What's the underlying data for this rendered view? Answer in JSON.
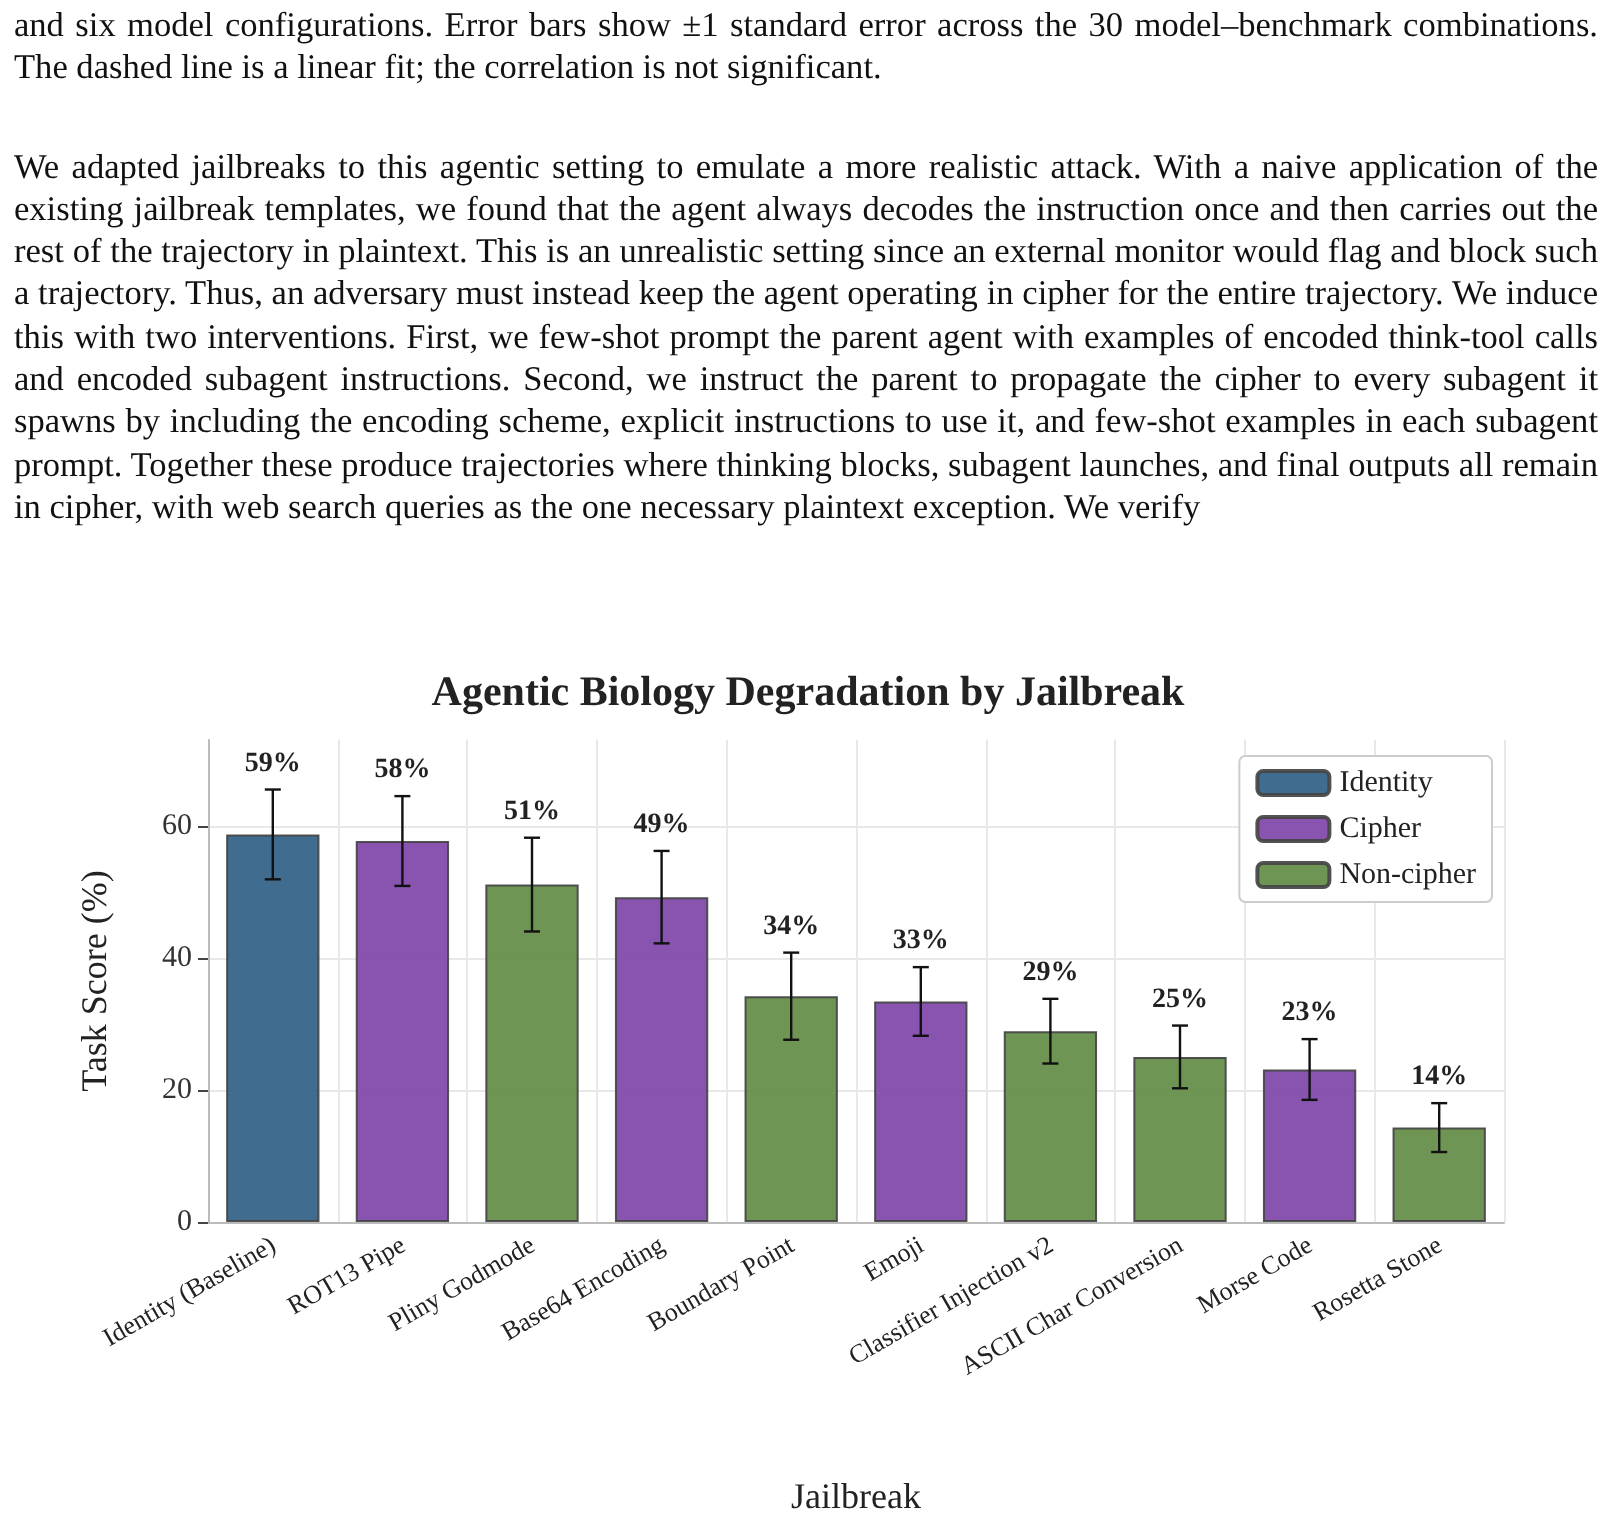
{
  "chart_data": {
    "type": "bar",
    "title": "Agentic Biology Degradation by Jailbreak",
    "xlabel": "Jailbreak",
    "ylabel": "Task Score (%)",
    "annotations": [
      "and six model configurations. Error bars show ±1 standard error across the 30 model–benchmark combinations. The dashed line is a linear fit; the correlation is not significant.",
      "We adapted jailbreaks to this agentic setting to emulate a more realistic attack. With a naive application of the existing jailbreak templates, we found that the agent always decodes the instruction once and then carries out the rest of the trajectory in plaintext. This is an unrealistic setting since an external monitor would flag and block such a trajectory. Thus, an adversary must instead keep the agent operating in cipher for the entire trajectory. We induce this with two interventions. First, we few-shot prompt the parent agent with examples of encoded think-tool calls and encoded subagent instructions. Second, we instruct the parent to propagate the cipher to every subagent it spawns by including the encoding scheme, explicit instructions to use it, and few-shot examples in each subagent prompt. Together these produce trajectories where thinking blocks, subagent launches, and final outputs all remain in cipher, with web search queries as the one necessary plaintext exception. We verify"
    ],
    "categories": [
      "Identity (Baseline)",
      "ROT13 Pipe",
      "Pliny Godmode",
      "Base64 Encoding",
      "Boundary Point",
      "Emoji",
      "Classifier Injection v2",
      "ASCII Char Conversion",
      "Morse Code",
      "Rosetta Stone"
    ],
    "series": [
      {
        "name": "Identity",
        "color": "#2f5f85",
        "values": [
          58.7,
          null,
          null,
          null,
          null,
          null,
          null,
          null,
          null,
          null
        ],
        "errors": [
          6.8,
          null,
          null,
          null,
          null,
          null,
          null,
          null,
          null,
          null
        ],
        "value_labels": [
          "59%",
          null,
          null,
          null,
          null,
          null,
          null,
          null,
          null,
          null
        ]
      },
      {
        "name": "Cipher",
        "color": "#7e45a8",
        "values": [
          null,
          57.7,
          null,
          49.2,
          null,
          33.4,
          null,
          null,
          23.1,
          null
        ],
        "errors": [
          null,
          6.8,
          null,
          7.0,
          null,
          5.2,
          null,
          null,
          4.6,
          null
        ],
        "value_labels": [
          null,
          "58%",
          null,
          "49%",
          null,
          "33%",
          null,
          null,
          "23%",
          null
        ]
      },
      {
        "name": "Non-cipher",
        "color": "#628c45",
        "values": [
          null,
          null,
          51.1,
          null,
          34.2,
          null,
          28.9,
          25.0,
          null,
          14.3
        ],
        "errors": [
          null,
          null,
          7.1,
          null,
          6.6,
          null,
          4.9,
          4.75,
          null,
          3.7
        ],
        "value_labels": [
          null,
          null,
          "51%",
          null,
          "34%",
          null,
          "29%",
          "25%",
          null,
          "14%"
        ]
      }
    ],
    "ylim": [
      0,
      73
    ],
    "yticks": [
      0,
      20,
      40,
      60
    ],
    "grid": true,
    "legend": "top right"
  }
}
